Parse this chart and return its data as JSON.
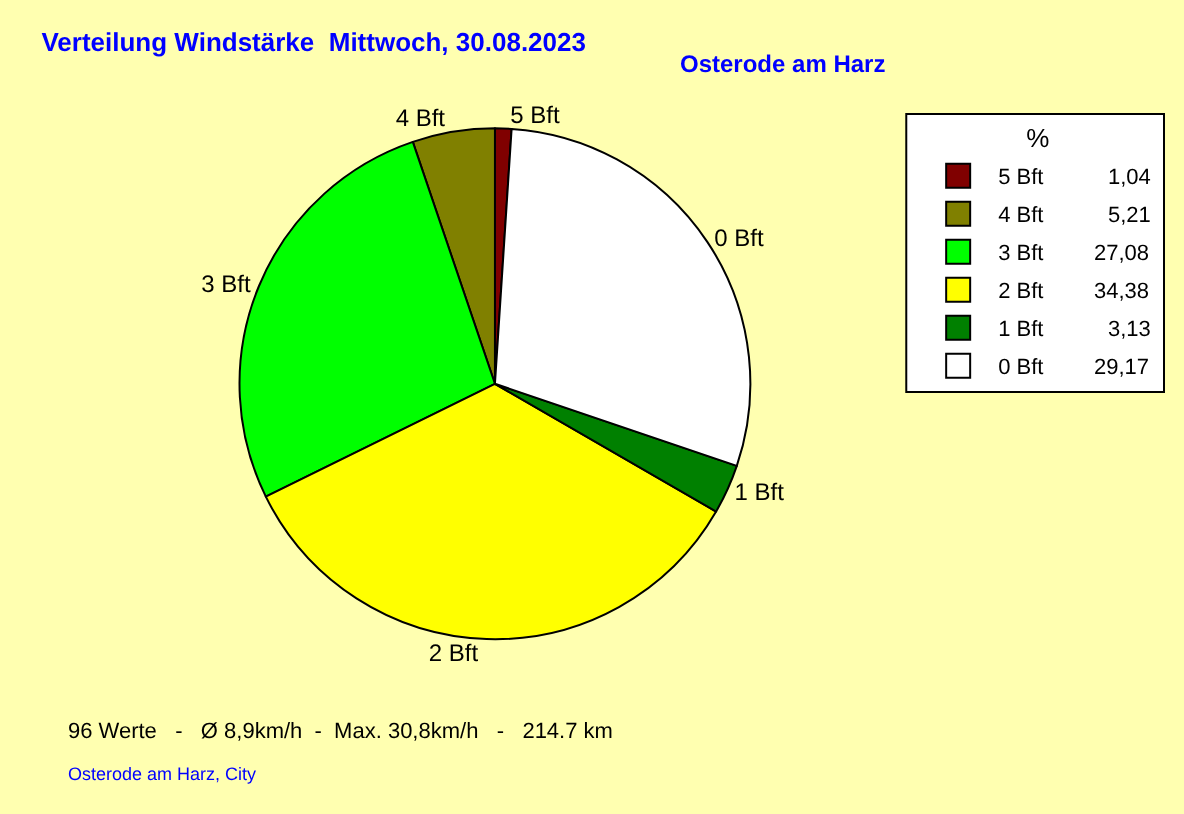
{
  "chart_data": {
    "type": "pie",
    "title": "Verteilung Windstärke  Mittwoch, 30.08.2023",
    "subtitle": "Osterode am Harz",
    "categories": [
      "5 Bft",
      "4 Bft",
      "3 Bft",
      "2 Bft",
      "1 Bft",
      "0 Bft"
    ],
    "values": [
      1.04,
      5.21,
      27.08,
      34.38,
      3.13,
      29.17
    ],
    "value_labels": [
      "1,04",
      "5,21",
      "27,08",
      "34,38",
      "3,13",
      "29,17"
    ],
    "colors": [
      "#800000",
      "#808000",
      "#00ff00",
      "#ffff00",
      "#008000",
      "#ffffff"
    ],
    "legend_title": "%",
    "legend": "top right",
    "annotations": [
      "96 Werte   -   Ø 8,9km/h  -  Max. 30,8km/h   -   214.7 km",
      "Osterode am Harz, City"
    ]
  }
}
